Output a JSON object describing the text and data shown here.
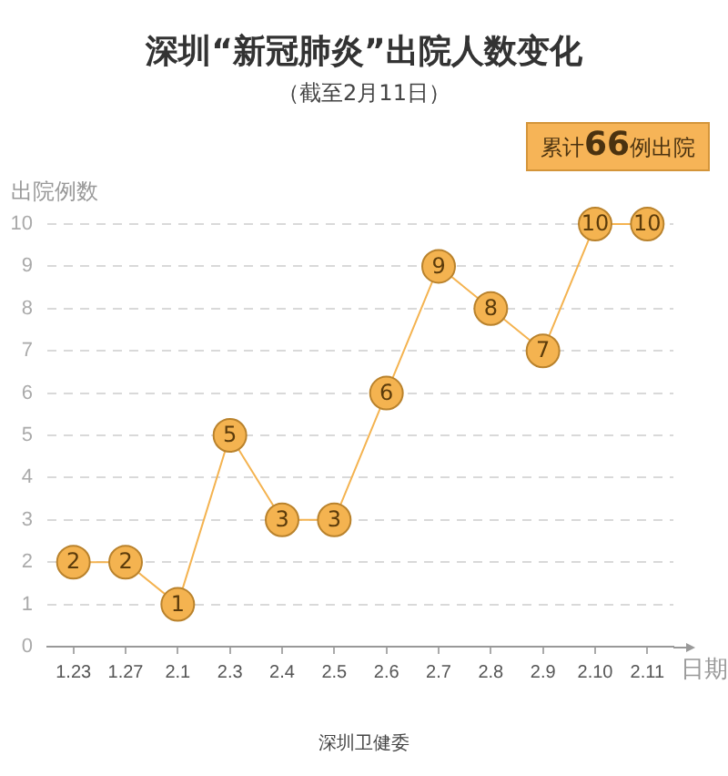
{
  "chart_data": {
    "type": "line",
    "title": "深圳“新冠肺炎”出院人数变化",
    "subtitle": "（截至2月11日）",
    "xlabel": "日期",
    "ylabel": "出院例数",
    "annotations": [
      "累计66例出院",
      "深圳卫健委"
    ],
    "categories": [
      "1.23",
      "1.27",
      "2.1",
      "2.3",
      "2.4",
      "2.5",
      "2.6",
      "2.7",
      "2.8",
      "2.9",
      "2.10",
      "2.11"
    ],
    "series": [
      {
        "color": "#f4b350",
        "values": [
          2,
          2,
          1,
          5,
          3,
          3,
          6,
          9,
          8,
          7,
          10,
          10
        ]
      }
    ],
    "ylim": [
      0,
      10
    ],
    "yticks": [
      0,
      1,
      2,
      3,
      4,
      5,
      6,
      7,
      8,
      9,
      10
    ],
    "grid": "y",
    "legend": false,
    "marker": "circle",
    "line_style": "solid",
    "data_labels": true
  }
}
